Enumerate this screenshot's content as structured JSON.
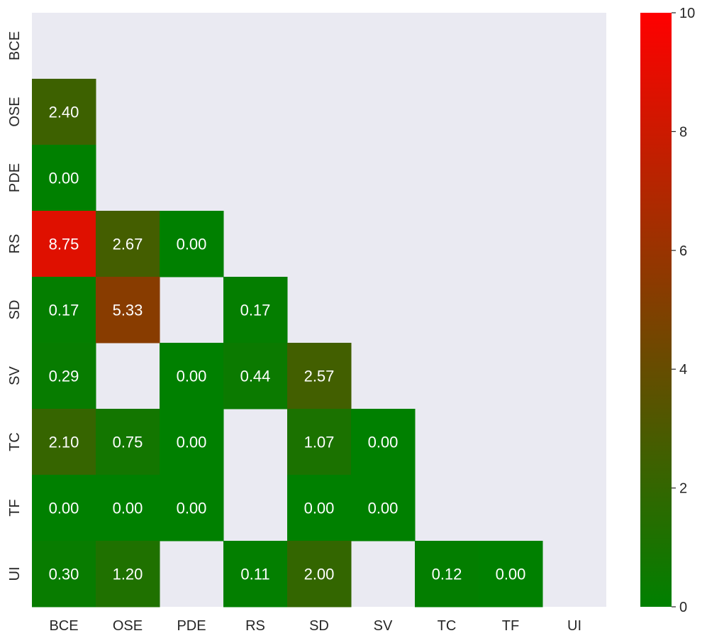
{
  "chart_data": {
    "type": "heatmap",
    "title": "",
    "xlabel": "",
    "ylabel": "",
    "x_categories": [
      "BCE",
      "OSE",
      "PDE",
      "RS",
      "SD",
      "SV",
      "TC",
      "TF",
      "UI"
    ],
    "y_categories": [
      "BCE",
      "OSE",
      "PDE",
      "RS",
      "SD",
      "SV",
      "TC",
      "TF",
      "UI"
    ],
    "values": [
      [
        null,
        null,
        null,
        null,
        null,
        null,
        null,
        null,
        null
      ],
      [
        2.4,
        null,
        null,
        null,
        null,
        null,
        null,
        null,
        null
      ],
      [
        0.0,
        null,
        null,
        null,
        null,
        null,
        null,
        null,
        null
      ],
      [
        8.75,
        2.67,
        0.0,
        null,
        null,
        null,
        null,
        null,
        null
      ],
      [
        0.17,
        5.33,
        null,
        0.17,
        null,
        null,
        null,
        null,
        null
      ],
      [
        0.29,
        null,
        0.0,
        0.44,
        2.57,
        null,
        null,
        null,
        null
      ],
      [
        2.1,
        0.75,
        0.0,
        null,
        1.07,
        0.0,
        null,
        null,
        null
      ],
      [
        0.0,
        0.0,
        0.0,
        null,
        0.0,
        0.0,
        null,
        null,
        null
      ],
      [
        0.3,
        1.2,
        null,
        0.11,
        2.0,
        null,
        0.12,
        0.0,
        null
      ]
    ],
    "annotation_format": "0.00",
    "colorbar": {
      "range": [
        0,
        10
      ],
      "ticks": [
        "0",
        "2",
        "4",
        "6",
        "8",
        "10"
      ],
      "colormap": [
        "#008000",
        "#ff0000"
      ]
    },
    "colors": {
      "background": "#eaeaf2",
      "annotation_text": "#ffffff"
    },
    "grid": false
  }
}
